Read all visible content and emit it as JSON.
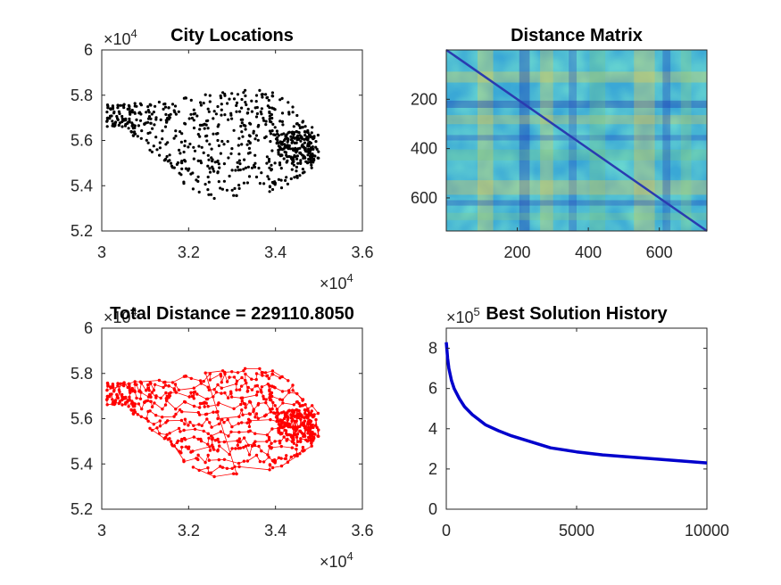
{
  "chart_data": [
    {
      "id": "city",
      "type": "scatter",
      "title": "City Locations",
      "xlim": [
        3.0,
        3.6
      ],
      "ylim": [
        5.2,
        6.0
      ],
      "xticks": [
        "3",
        "3.2",
        "3.4",
        "3.6"
      ],
      "yticks": [
        "5.2",
        "5.4",
        "5.6",
        "5.8",
        "6"
      ],
      "x_multiplier": "×10",
      "x_exponent": "4",
      "y_multiplier": "×10",
      "y_exponent": "4",
      "color": "#000000",
      "point_count": 734
    },
    {
      "id": "matrix",
      "type": "heatmap",
      "title": "Distance Matrix",
      "xlim": [
        0,
        734
      ],
      "ylim": [
        0,
        734
      ],
      "xticks": [
        "200",
        "400",
        "600"
      ],
      "yticks": [
        "200",
        "400",
        "600"
      ],
      "colormap": "parula"
    },
    {
      "id": "tour",
      "type": "line",
      "title": "Total Distance = 229110.8050",
      "xlim": [
        3.0,
        3.6
      ],
      "ylim": [
        5.2,
        6.0
      ],
      "xticks": [
        "3",
        "3.2",
        "3.4",
        "3.6"
      ],
      "yticks": [
        "5.2",
        "5.4",
        "5.6",
        "5.8",
        "6"
      ],
      "x_multiplier": "×10",
      "x_exponent": "4",
      "y_multiplier": "×10",
      "y_exponent": "4",
      "color": "#ff0000"
    },
    {
      "id": "history",
      "type": "line",
      "title": "Best Solution History",
      "xlim": [
        0,
        10000
      ],
      "ylim": [
        0,
        9
      ],
      "xticks": [
        "0",
        "5000",
        "10000"
      ],
      "yticks": [
        "0",
        "2",
        "4",
        "6",
        "8"
      ],
      "y_multiplier": "×10",
      "y_exponent": "5",
      "color": "#0000cc",
      "x": [
        0,
        50,
        100,
        200,
        300,
        500,
        700,
        1000,
        1500,
        2000,
        2500,
        3000,
        3500,
        4000,
        5000,
        6000,
        7000,
        8000,
        9000,
        10000
      ],
      "values": [
        8.3,
        7.5,
        7.0,
        6.4,
        6.0,
        5.5,
        5.1,
        4.7,
        4.2,
        3.9,
        3.65,
        3.45,
        3.25,
        3.05,
        2.85,
        2.7,
        2.6,
        2.5,
        2.4,
        2.3
      ]
    }
  ]
}
